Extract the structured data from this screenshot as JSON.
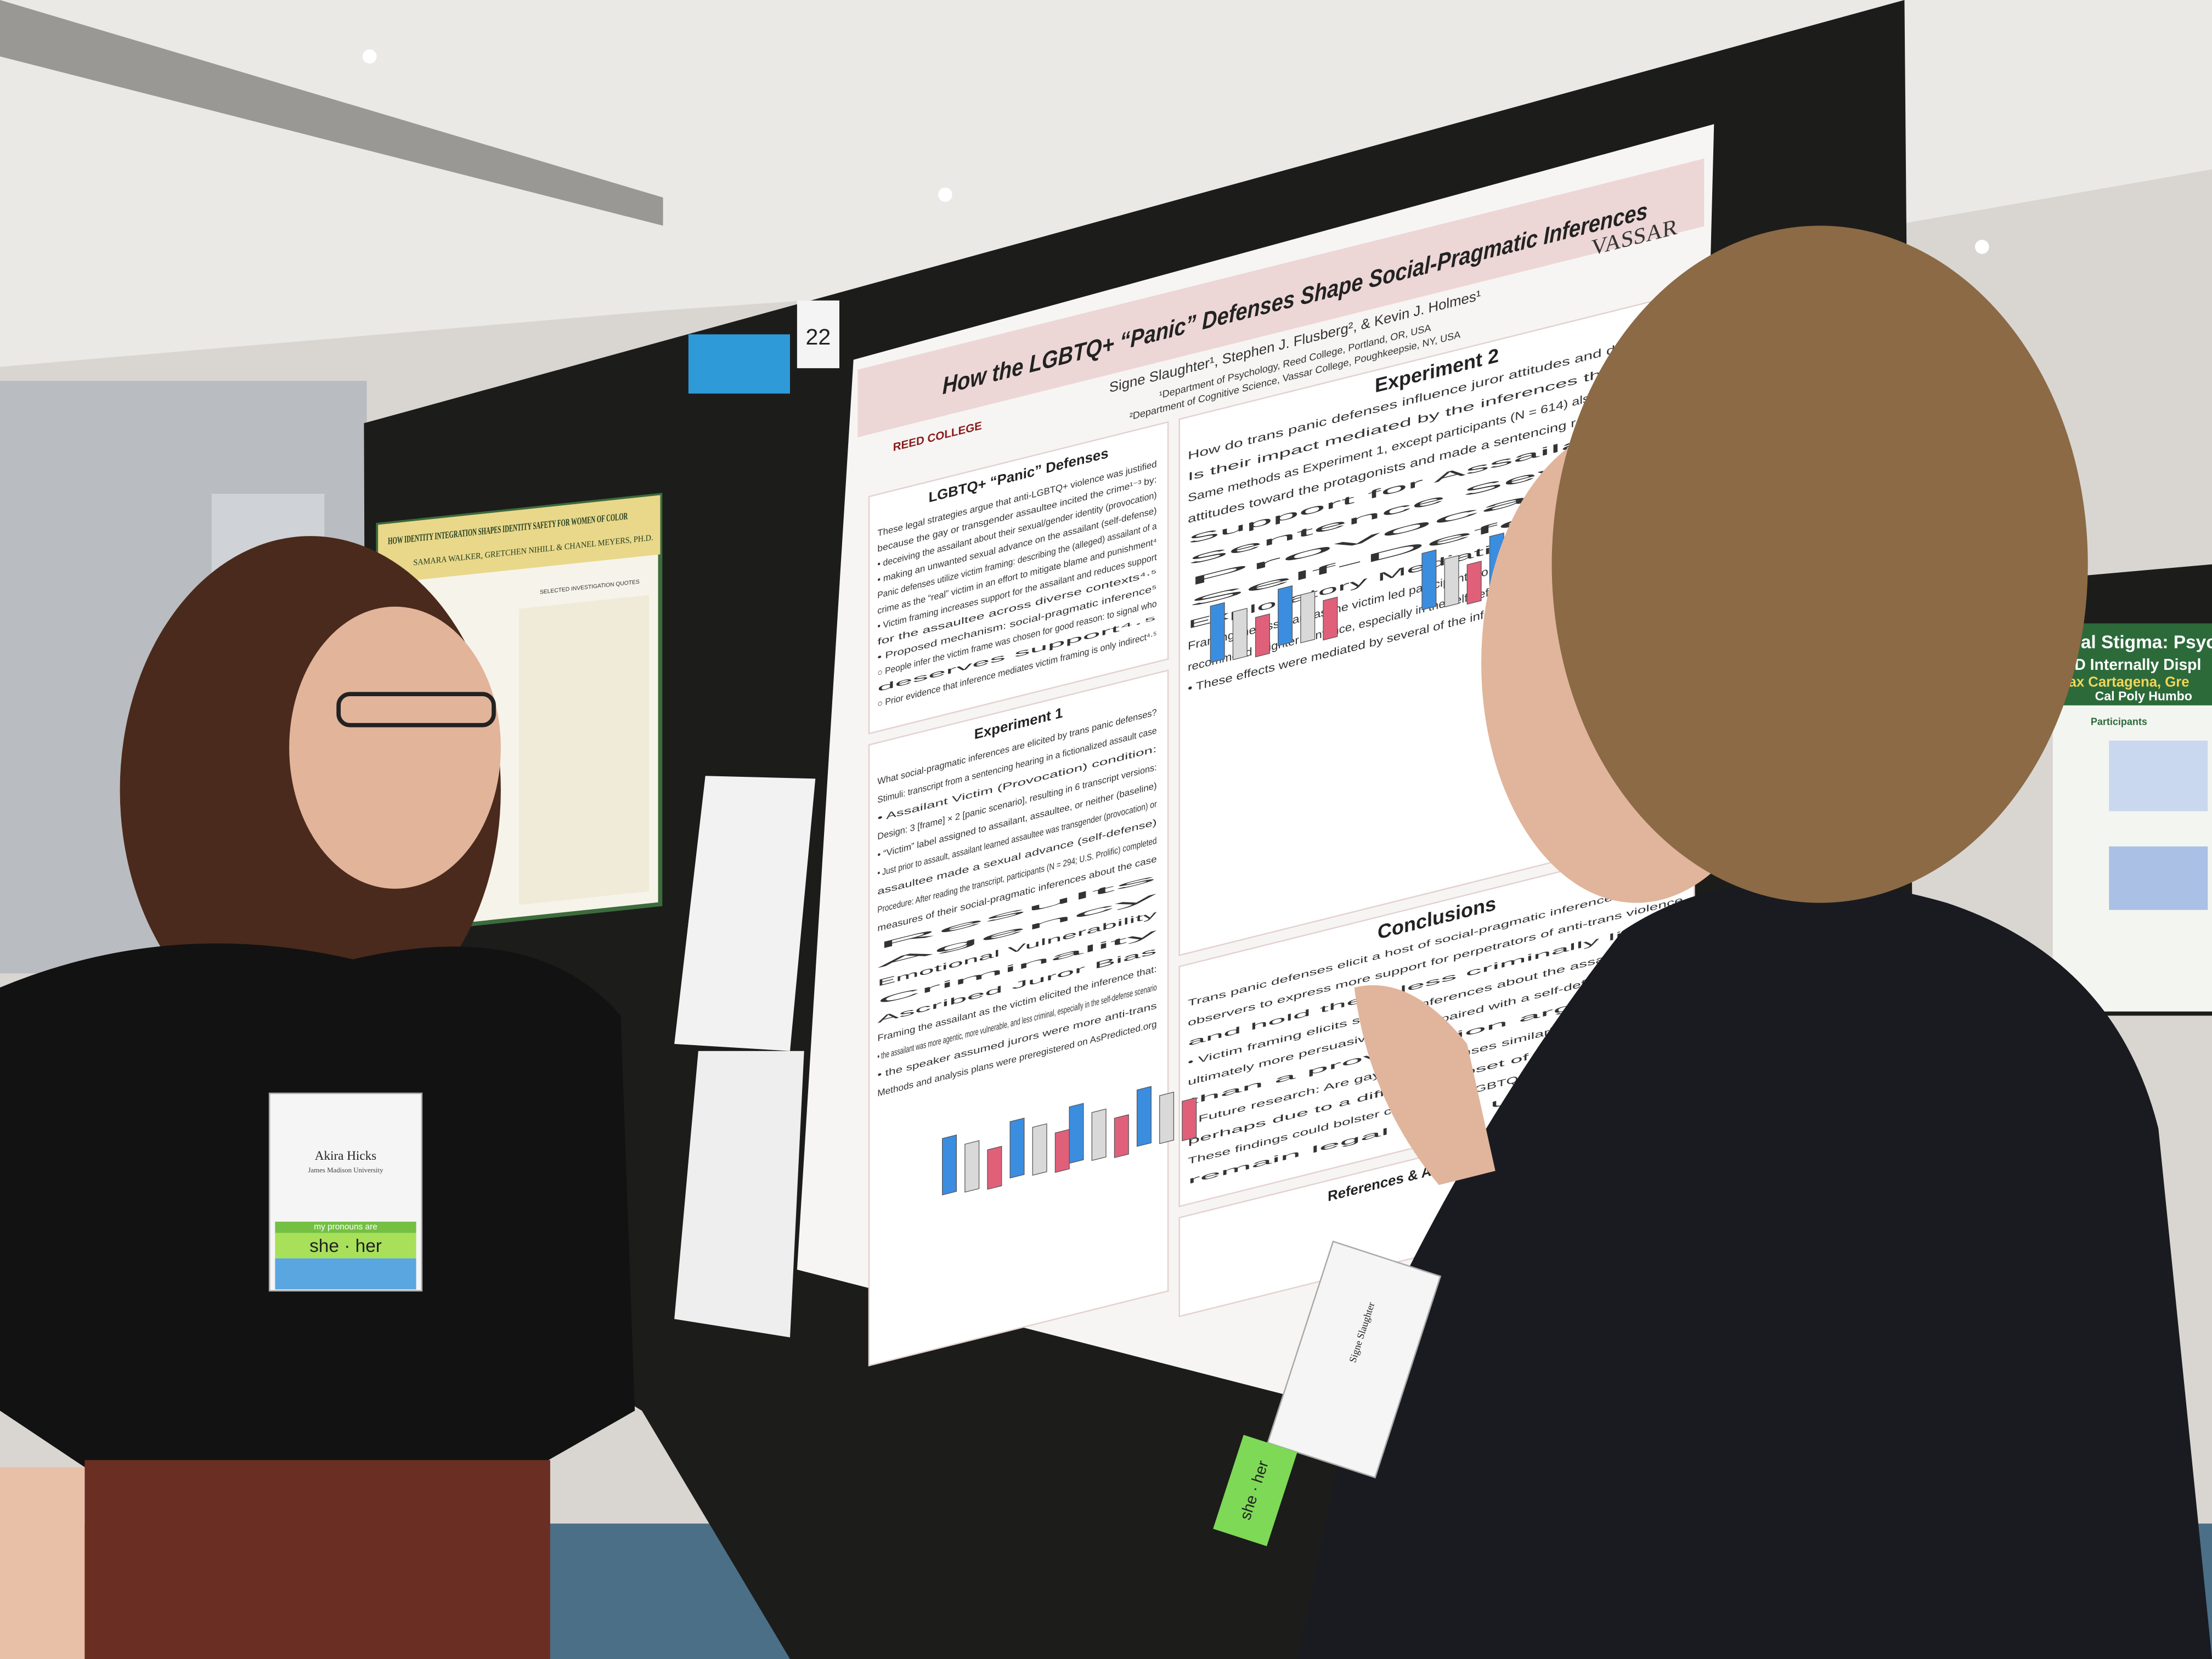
{
  "main_poster": {
    "number": "22",
    "title": "How the LGBTQ+ “Panic” Defenses Shape Social-Pragmatic Inferences",
    "authors": "Signe Slaughter¹, Stephen J. Flusberg², & Kevin J. Holmes¹",
    "affiliations": [
      "¹Department of Psychology, Reed College, Portland, OR, USA",
      "²Department of Cognitive Science, Vassar College, Poughkeepsie, NY, USA"
    ],
    "logos": [
      "REED COLLEGE",
      "VASSAR"
    ],
    "sections": [
      {
        "heading": "LGBTQ+ “Panic” Defenses",
        "lines": [
          "These legal strategies argue that anti-LGBTQ+ violence was justified",
          "because the gay or transgender assaultee incited the crime¹⁻³ by:",
          "• deceiving the assailant about their sexual/gender identity (provocation)",
          "• making an unwanted sexual advance on the assailant (self-defense)",
          "Panic defenses utilize victim framing: describing the (alleged) assailant of a",
          "crime as the “real” victim in an effort to mitigate blame and punishment⁴",
          "• Victim framing increases support for the assailant and reduces support",
          "  for the assaultee across diverse contexts⁴·⁵",
          "• Proposed mechanism: social-pragmatic inference⁵",
          "  ○ People infer the victim frame was chosen for good reason: to signal who",
          "    deserves support⁴·⁵",
          "  ○ Prior evidence that inference mediates victim framing is only indirect⁴·⁵"
        ]
      },
      {
        "heading": "Experiment 1",
        "lines": [
          "What social-pragmatic inferences are elicited by trans panic defenses?",
          "Stimuli: transcript from a sentencing hearing in a fictionalized assault case",
          "• Assailant Victim (Provocation) condition:",
          "Design: 3 [frame] × 2 [panic scenario], resulting in 6 transcript versions:",
          "• “Victim” label assigned to assailant, assaultee, or neither (baseline)",
          "• Just prior to assault, assailant learned assaultee was transgender (provocation) or",
          "  assaultee made a sexual advance (self-defense)",
          "Procedure: After reading the transcript, participants (N = 294; U.S. Prolific) completed",
          "measures of their social-pragmatic inferences about the case",
          "Results",
          "Agency",
          "Emotional Vulnerability",
          "Criminality",
          "Ascribed Juror Bias",
          "Framing the assailant as the victim elicited the inference that:",
          "• the assailant was more agentic, more vulnerable, and less criminal, especially in the self-defense scenario",
          "• the speaker assumed jurors were more anti-trans",
          "Methods and analysis plans were preregistered on AsPredicted.org"
        ]
      },
      {
        "heading": "Experiment 2",
        "lines": [
          "How do trans panic defenses influence juror attitudes and decisions?",
          "Is their impact mediated by the inferences they elicit?",
          "Same methods as Experiment 1, except participants (N = 614) also reported their",
          "attitudes toward the protagonists and made a sentencing recommendation",
          "Support for Assailant⁴·⁵",
          "Sentence Severity",
          "Provocation",
          "Self-Defense",
          "Exploratory Mediation Analyses",
          "Framing the assailant as the victim led participants to express more support for him and",
          "recommend a lighter sentence, especially in the self-defense scenario (interaction: ps < .03)",
          "• These effects were mediated by several of the inferences identified in Experiment 1"
        ]
      },
      {
        "heading": "Conclusions",
        "lines": [
          "Trans panic defenses elicit a host of social-pragmatic inferences that lead",
          "observers to express more support for perpetrators of anti-trans violence",
          "and hold them less criminally liable",
          "• Victim framing elicits stronger inferences about the assailant and is",
          "  ultimately more persuasive — when paired with a self-defense scenario",
          "  than a provocation argument",
          "• Future research: Are gay panic defenses similarly persuasive, and",
          "  perhaps due to a different subset of the inferences?",
          "These findings could bolster calls to ban LGBTQ+ panic defenses, which",
          "remain legal in 30 U.S. states³"
        ]
      },
      {
        "heading": "References & Acknowledgments",
        "lines": []
      }
    ]
  },
  "left_poster": {
    "title": "HOW IDENTITY INTEGRATION SHAPES IDENTITY SAFETY FOR WOMEN OF COLOR",
    "authors": "SAMARA WALKER, GRETCHEN NIHILL & CHANEL MEYERS, PH.D.",
    "section": "SELECTED INVESTIGATION QUOTES"
  },
  "right_poster": {
    "title": "ural Stigma: Psych",
    "subtitle": "GD Internally Displ",
    "authors": "Max Cartagena, Gre",
    "affiliation": "Cal Poly Humbo",
    "section": "Participants"
  },
  "badges": [
    {
      "name": "Akira Hicks",
      "affiliation": "James Madison University",
      "pronouns_label": "my pronouns are",
      "pronouns": "she · her"
    },
    {
      "name": "Signe Slaughter",
      "pronouns": "she · her"
    }
  ]
}
